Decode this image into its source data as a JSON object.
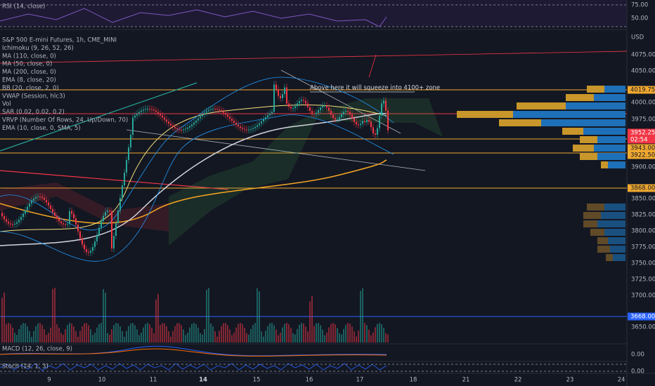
{
  "rsi_pane": {
    "label": "RSI (14, close)",
    "axis": [
      "75.00",
      "50.00"
    ]
  },
  "main_pane": {
    "legend": [
      "S&P 500 E-mini Futures, 1h, CME_MINI",
      "Ichimoku (9, 26, 52, 26)",
      "MA (110, close, 0)",
      "MA (50, close, 0)",
      "MA (200, close, 0)",
      "EMA (8, close, 20)",
      "BB (20, close, 2, 0)",
      "VWAP (Session, hlc3)",
      "Vol",
      "SAR (0.02, 0.02, 0.2)",
      "VRVP (Number Of Rows, 24, Up/Down, 70)",
      "EMA (10, close, 0, SMA, 5)"
    ],
    "currency": "USD",
    "axis": [
      "4075.00",
      "4050.00",
      "4000.00",
      "3975.00",
      "3900.00",
      "3850.00",
      "3825.00",
      "3800.00",
      "3775.00",
      "3750.00",
      "3725.00",
      "3700.00",
      "3650.00"
    ],
    "price_tags": [
      "4019.75",
      "3952.25",
      "02:54",
      "3943.00",
      "3922.50",
      "3868.00",
      "3668.00"
    ],
    "annotation": "Above here it will squeeze into 4100+ zone"
  },
  "macd_pane": {
    "label": "MACD (12, 26, close, 9)",
    "axis": [
      "0.00"
    ]
  },
  "stoch_pane": {
    "label": "Stoch (14, 1, 3)",
    "axis": [
      "0.00"
    ]
  },
  "time_axis": [
    "9",
    "10",
    "11",
    "14",
    "15",
    "16",
    "17",
    "18",
    "21",
    "22",
    "23",
    "24"
  ]
}
